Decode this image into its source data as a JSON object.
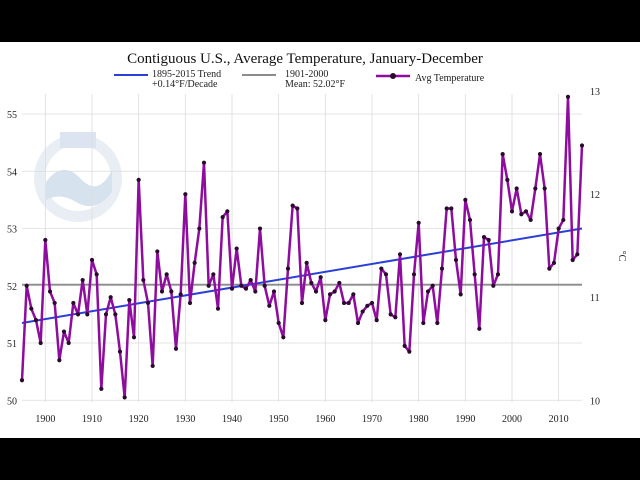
{
  "chart_data": {
    "type": "line",
    "title": "Contiguous U.S., Average Temperature, January-December",
    "legend": {
      "position": "top",
      "entries": [
        {
          "label": "1895-2015 Trend",
          "sublabel": "+0.14°F/Decade",
          "color": "#2a3fd8"
        },
        {
          "label": "1901-2000",
          "sublabel": "Mean: 52.02°F",
          "color": "#8c8c8c"
        },
        {
          "label": "Avg Temperature",
          "sublabel": "",
          "color": "#8e0d9e"
        }
      ]
    },
    "x_ticks": [
      "1900",
      "1910",
      "1920",
      "1930",
      "1940",
      "1950",
      "1960",
      "1970",
      "1980",
      "1990",
      "2000",
      "2010"
    ],
    "y_ticks": [
      "50",
      "51",
      "52",
      "53",
      "54",
      "55"
    ],
    "y2_ticks": [
      "10",
      "11",
      "12",
      "13"
    ],
    "y2_label": "°C",
    "xlim": [
      1895,
      2015
    ],
    "ylim": [
      49.97,
      55.35
    ],
    "grid": true,
    "mean": 52.02,
    "trend": {
      "start_year": 1895,
      "start_value": 51.35,
      "end_year": 2015,
      "end_value": 53.0
    },
    "series": [
      {
        "name": "Avg Temperature",
        "color": "#8e0d9e",
        "x": [
          1895,
          1896,
          1897,
          1898,
          1899,
          1900,
          1901,
          1902,
          1903,
          1904,
          1905,
          1906,
          1907,
          1908,
          1909,
          1910,
          1911,
          1912,
          1913,
          1914,
          1915,
          1916,
          1917,
          1918,
          1919,
          1920,
          1921,
          1922,
          1923,
          1924,
          1925,
          1926,
          1927,
          1928,
          1929,
          1930,
          1931,
          1932,
          1933,
          1934,
          1935,
          1936,
          1937,
          1938,
          1939,
          1940,
          1941,
          1942,
          1943,
          1944,
          1945,
          1946,
          1947,
          1948,
          1949,
          1950,
          1951,
          1952,
          1953,
          1954,
          1955,
          1956,
          1957,
          1958,
          1959,
          1960,
          1961,
          1962,
          1963,
          1964,
          1965,
          1966,
          1967,
          1968,
          1969,
          1970,
          1971,
          1972,
          1973,
          1974,
          1975,
          1976,
          1977,
          1978,
          1979,
          1980,
          1981,
          1982,
          1983,
          1984,
          1985,
          1986,
          1987,
          1988,
          1989,
          1990,
          1991,
          1992,
          1993,
          1994,
          1995,
          1996,
          1997,
          1998,
          1999,
          2000,
          2001,
          2002,
          2003,
          2004,
          2005,
          2006,
          2007,
          2008,
          2009,
          2010,
          2011,
          2012,
          2013,
          2014,
          2015
        ],
        "values": [
          50.35,
          52.0,
          51.6,
          51.4,
          51.0,
          52.8,
          51.9,
          51.7,
          50.7,
          51.2,
          51.0,
          51.7,
          51.5,
          52.1,
          51.5,
          52.45,
          52.2,
          50.2,
          51.5,
          51.8,
          51.5,
          50.85,
          50.05,
          51.75,
          51.1,
          53.85,
          52.1,
          51.7,
          50.6,
          52.6,
          51.9,
          52.2,
          51.9,
          50.9,
          51.85,
          53.6,
          51.7,
          52.4,
          53.0,
          54.15,
          52.0,
          52.2,
          51.6,
          53.2,
          53.3,
          51.95,
          52.65,
          52.0,
          51.95,
          52.1,
          51.9,
          53.0,
          52.0,
          51.65,
          51.9,
          51.35,
          51.1,
          52.3,
          53.4,
          53.35,
          51.7,
          52.4,
          52.05,
          51.9,
          52.15,
          51.4,
          51.85,
          51.9,
          52.05,
          51.7,
          51.7,
          51.85,
          51.35,
          51.55,
          51.65,
          51.7,
          51.4,
          52.3,
          52.2,
          51.5,
          51.45,
          52.55,
          50.95,
          50.85,
          52.2,
          53.1,
          51.35,
          51.9,
          52.0,
          51.35,
          52.3,
          53.35,
          53.35,
          52.45,
          51.85,
          53.5,
          53.15,
          52.2,
          51.25,
          52.85,
          52.8,
          52.0,
          52.2,
          54.3,
          53.85,
          53.3,
          53.7,
          53.25,
          53.3,
          53.15,
          53.7,
          54.3,
          53.7,
          52.3,
          52.4,
          53.0,
          53.15,
          55.3,
          52.45,
          52.55,
          54.45
        ]
      }
    ]
  }
}
